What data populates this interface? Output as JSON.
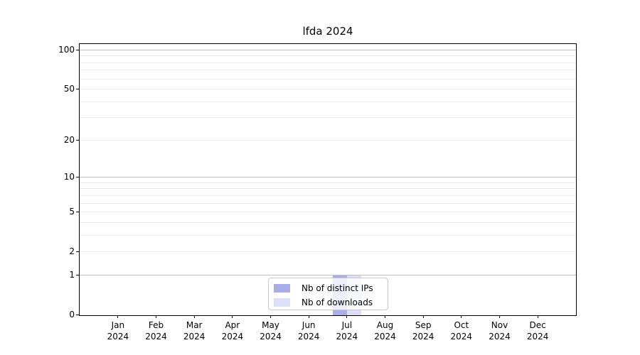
{
  "title": "lfda 2024",
  "colors": {
    "bar_distinct_ips": "#a9aeeb",
    "bar_downloads": "#dcdff8",
    "grid_major": "#c0c0c0",
    "grid_minor": "#eaeaea",
    "spine": "#000000",
    "legend_border": "#c9c9c9"
  },
  "chart_data": {
    "type": "bar",
    "title": "lfda 2024",
    "xlabel": "",
    "ylabel": "",
    "categories": [
      "Jan",
      "Feb",
      "Mar",
      "Apr",
      "May",
      "Jun",
      "Jul",
      "Aug",
      "Sep",
      "Oct",
      "Nov",
      "Dec"
    ],
    "category_year": "2024",
    "series": [
      {
        "name": "Nb of distinct IPs",
        "color": "#a9aeeb",
        "values": [
          0,
          0,
          0,
          0,
          0,
          0,
          1,
          0,
          0,
          0,
          0,
          0
        ]
      },
      {
        "name": "Nb of downloads",
        "color": "#dcdff8",
        "values": [
          0,
          0,
          0,
          0,
          0,
          0,
          1,
          0,
          0,
          0,
          0,
          0
        ]
      }
    ],
    "yscale": "log1p",
    "ylim": [
      0,
      110.6
    ],
    "yticks": [
      100,
      50,
      20,
      10,
      5,
      2,
      1,
      0
    ],
    "ytick_labels": [
      "100",
      "50",
      "20",
      "10",
      "5",
      "2",
      "1",
      "0"
    ],
    "gridlines_major": [
      1,
      10,
      100
    ],
    "gridlines_minor": [
      2,
      3,
      4,
      5,
      6,
      7,
      8,
      9,
      20,
      30,
      40,
      50,
      60,
      70,
      80,
      90
    ],
    "grid": true,
    "legend": {
      "position": "lower center",
      "entries": [
        "Nb of distinct IPs",
        "Nb of downloads"
      ]
    }
  }
}
